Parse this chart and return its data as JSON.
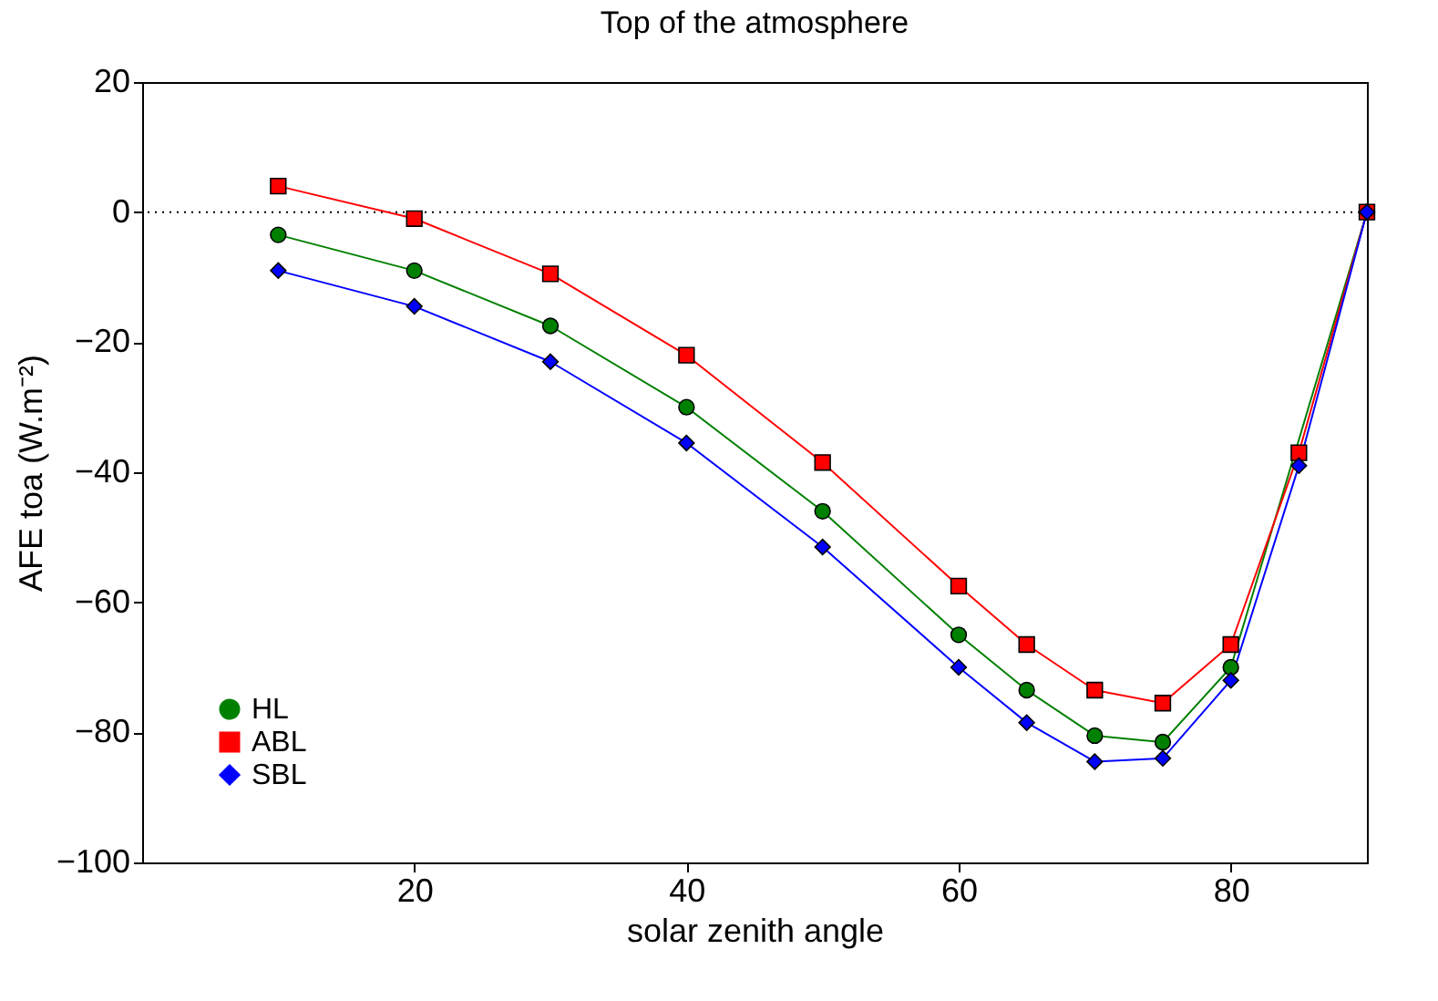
{
  "chart_data": {
    "type": "line",
    "title": "Top of the atmosphere",
    "xlabel": "solar zenith angle",
    "ylabel": "AFE toa (W.m⁻²)",
    "x": [
      10,
      20,
      30,
      40,
      50,
      60,
      65,
      70,
      75,
      80,
      85,
      90
    ],
    "series": [
      {
        "name": "HL",
        "color": "#008000",
        "marker": "circle",
        "values": [
          -3.5,
          -9,
          -17.5,
          -30,
          -46,
          -65,
          -73.5,
          -80.5,
          -81.5,
          -70,
          null,
          0
        ]
      },
      {
        "name": "ABL",
        "color": "#ff0000",
        "marker": "square",
        "values": [
          4,
          -1,
          -9.5,
          -22,
          -38.5,
          -57.5,
          -66.5,
          -73.5,
          -75.5,
          -66.5,
          -37,
          0
        ]
      },
      {
        "name": "SBL",
        "color": "#0000ff",
        "marker": "diamond",
        "values": [
          -9,
          -14.5,
          -23,
          -35.5,
          -51.5,
          -70,
          -78.5,
          -84.5,
          -84,
          -72,
          -39,
          0
        ]
      }
    ],
    "xlim": [
      0,
      90
    ],
    "xticks": [
      20,
      40,
      60,
      80
    ],
    "ylim": [
      -100,
      20
    ],
    "yticks": [
      -100,
      -80,
      -60,
      -40,
      -20,
      0,
      20
    ],
    "ref_lines": [
      {
        "axis": "y",
        "value": 0,
        "line_style": "dotted",
        "color": "#000000"
      }
    ],
    "grid": false,
    "legend": "bottom left",
    "line_style": "solid"
  }
}
